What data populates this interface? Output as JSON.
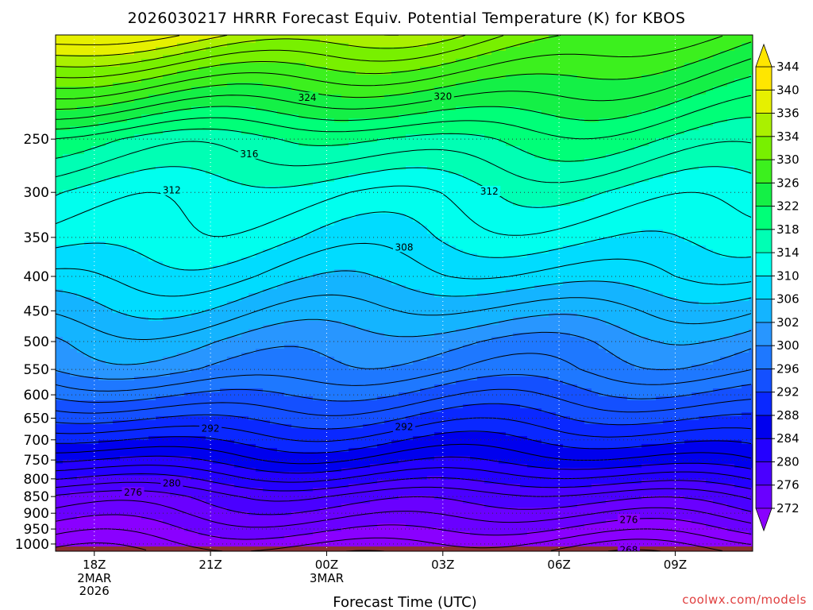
{
  "title": "2026030217 HRRR Forecast Equiv. Potential Temperature (K) for KBOS",
  "xlabel": "Forecast Time (UTC)",
  "credit": "coolwx.com/models",
  "chart_data": {
    "type": "heatmap",
    "title": "2026030217 HRRR Forecast Equiv. Potential Temperature (K) for KBOS",
    "xlabel": "Forecast Time (UTC)",
    "ylabel": "",
    "x_ticks": [
      {
        "label": "18Z",
        "sub": [
          "2MAR",
          "2026"
        ],
        "hour": 1
      },
      {
        "label": "21Z",
        "sub": [],
        "hour": 4
      },
      {
        "label": "00Z",
        "sub": [
          "3MAR"
        ],
        "hour": 7
      },
      {
        "label": "03Z",
        "sub": [],
        "hour": 10
      },
      {
        "label": "06Z",
        "sub": [],
        "hour": 13
      },
      {
        "label": "09Z",
        "sub": [],
        "hour": 16
      }
    ],
    "xlim_hours": [
      0,
      18
    ],
    "y_ticks": [
      250,
      300,
      350,
      400,
      450,
      500,
      550,
      600,
      650,
      700,
      750,
      800,
      850,
      900,
      950,
      1000
    ],
    "ylim_hpa": [
      1025,
      175
    ],
    "y_scale": "log",
    "grid": true,
    "colorbar": {
      "levels": [
        272,
        276,
        280,
        284,
        288,
        292,
        296,
        300,
        302,
        306,
        310,
        314,
        318,
        322,
        326,
        330,
        334,
        336,
        340,
        344
      ],
      "colors": [
        "#8a00ff",
        "#6a00ff",
        "#4a00ff",
        "#2400ff",
        "#0000ee",
        "#0a28ff",
        "#1450ff",
        "#1e78ff",
        "#2896ff",
        "#14b4ff",
        "#00dcff",
        "#00ffee",
        "#00ffb4",
        "#00ff78",
        "#14f046",
        "#3cf01e",
        "#78f000",
        "#aaf000",
        "#e6f000",
        "#ffe600"
      ],
      "extend": "both"
    },
    "levels_hpa": [
      1000,
      950,
      900,
      850,
      800,
      750,
      700,
      650,
      600,
      550,
      500,
      450,
      400,
      350,
      300,
      250,
      200
    ],
    "theta_e_start": [
      270,
      272,
      274,
      276,
      280,
      284,
      288,
      292,
      296,
      300,
      302,
      305,
      308,
      311,
      313,
      318,
      332
    ],
    "theta_e_end": [
      269,
      272,
      275,
      278,
      282,
      286,
      289,
      292,
      295,
      298,
      300,
      303,
      307,
      310,
      313,
      318,
      324
    ],
    "contour_labels": [
      {
        "value": "324",
        "hour": 6.5,
        "hpa": 217
      },
      {
        "value": "320",
        "hour": 10.0,
        "hpa": 216
      },
      {
        "value": "316",
        "hour": 5.0,
        "hpa": 263
      },
      {
        "value": "312",
        "hour": 3.0,
        "hpa": 298
      },
      {
        "value": "312",
        "hour": 11.2,
        "hpa": 299
      },
      {
        "value": "308",
        "hour": 9.0,
        "hpa": 362
      },
      {
        "value": "292",
        "hour": 4.0,
        "hpa": 673
      },
      {
        "value": "292",
        "hour": 9.0,
        "hpa": 670
      },
      {
        "value": "280",
        "hour": 3.0,
        "hpa": 812
      },
      {
        "value": "276",
        "hour": 2.0,
        "hpa": 838
      },
      {
        "value": "276",
        "hour": 14.8,
        "hpa": 920
      },
      {
        "value": "268",
        "hour": 14.8,
        "hpa": 1021
      }
    ]
  }
}
